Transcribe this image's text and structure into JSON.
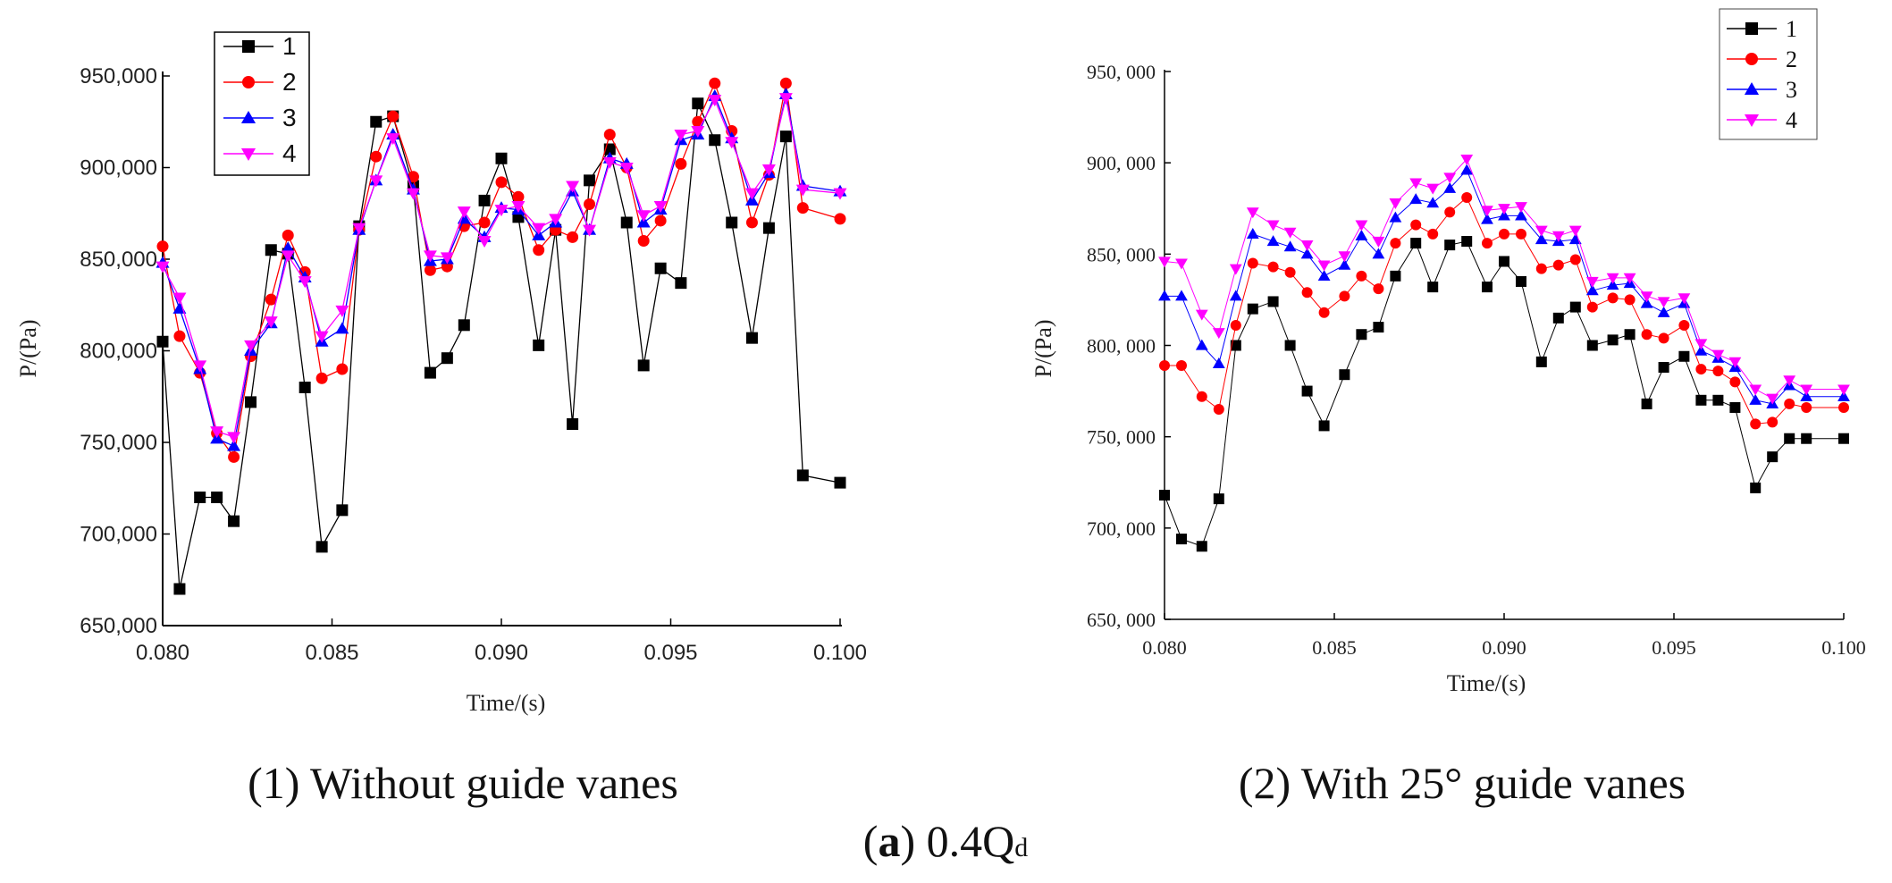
{
  "chart_data": [
    {
      "type": "line",
      "caption": "(1) Without guide vanes",
      "xlabel": "Time/(s)",
      "ylabel": "P/(Pa)",
      "xlim": [
        0.08,
        0.1
      ],
      "ylim": [
        650000,
        950000
      ],
      "xticks": [
        0.08,
        0.085,
        0.09,
        0.095,
        0.1
      ],
      "xtick_labels": [
        "0.080",
        "0.085",
        "0.090",
        "0.095",
        "0.100"
      ],
      "yticks": [
        650000,
        700000,
        750000,
        800000,
        850000,
        900000,
        950000
      ],
      "ytick_labels": [
        "650,000",
        "700,000",
        "750,000",
        "800,000",
        "850,000",
        "900,000",
        "950,000"
      ],
      "legend_position": "top-left",
      "x": [
        0.08,
        0.0805,
        0.0811,
        0.0816,
        0.0821,
        0.0826,
        0.0832,
        0.0837,
        0.0842,
        0.0847,
        0.0853,
        0.0858,
        0.0863,
        0.0868,
        0.0874,
        0.0879,
        0.0884,
        0.0889,
        0.0895,
        0.09,
        0.0905,
        0.0911,
        0.0916,
        0.0921,
        0.0926,
        0.0932,
        0.0937,
        0.0942,
        0.0947,
        0.0953,
        0.0958,
        0.0963,
        0.0968,
        0.0974,
        0.0979,
        0.0984,
        0.0989,
        0.1
      ],
      "series": [
        {
          "name": "1",
          "color": "#000000",
          "marker": "square",
          "values": [
            805000,
            670000,
            720000,
            720000,
            707000,
            772000,
            855000,
            853000,
            780000,
            693000,
            713000,
            868000,
            925000,
            928000,
            890000,
            788000,
            796000,
            814000,
            882000,
            905000,
            873000,
            803000,
            866000,
            760000,
            893000,
            910000,
            870000,
            792000,
            845000,
            837000,
            935000,
            915000,
            870000,
            807000,
            867000,
            917000,
            732000,
            728000
          ]
        },
        {
          "name": "2",
          "color": "#ff0000",
          "marker": "circle",
          "values": [
            857000,
            808000,
            788000,
            755000,
            742000,
            797000,
            828000,
            863000,
            843000,
            785000,
            790000,
            866000,
            906000,
            928000,
            895000,
            844000,
            846000,
            868000,
            870000,
            892000,
            884000,
            855000,
            866000,
            862000,
            880000,
            918000,
            900000,
            860000,
            871000,
            902000,
            925000,
            946000,
            920000,
            870000,
            896000,
            946000,
            878000,
            872000
          ]
        },
        {
          "name": "3",
          "color": "#0000ff",
          "marker": "triangle-up",
          "values": [
            848000,
            823000,
            790000,
            752000,
            748000,
            800000,
            815000,
            856000,
            840000,
            805000,
            812000,
            866000,
            893000,
            918000,
            888000,
            849000,
            850000,
            872000,
            862000,
            878000,
            877000,
            863000,
            870000,
            887000,
            866000,
            905000,
            902000,
            870000,
            877000,
            915000,
            918000,
            939000,
            916000,
            882000,
            897000,
            940000,
            890000,
            887000
          ]
        },
        {
          "name": "4",
          "color": "#ff00ff",
          "marker": "triangle-down",
          "values": [
            846000,
            829000,
            792000,
            756000,
            753000,
            803000,
            816000,
            852000,
            838000,
            808000,
            822000,
            867000,
            893000,
            916000,
            886000,
            852000,
            851000,
            876000,
            860000,
            877000,
            879000,
            867000,
            872000,
            890000,
            866000,
            903000,
            900000,
            874000,
            879000,
            918000,
            920000,
            937000,
            914000,
            886000,
            899000,
            938000,
            888000,
            886000
          ]
        }
      ]
    },
    {
      "type": "line",
      "caption": "(2) With 25° guide vanes",
      "xlabel": "Time/(s)",
      "ylabel": "P/(Pa)",
      "xlim": [
        0.08,
        0.1
      ],
      "ylim": [
        650000,
        950000
      ],
      "xticks": [
        0.08,
        0.085,
        0.09,
        0.095,
        0.1
      ],
      "xtick_labels": [
        "0.080",
        "0.085",
        "0.090",
        "0.095",
        "0.100"
      ],
      "yticks": [
        650000,
        700000,
        750000,
        800000,
        850000,
        900000,
        950000
      ],
      "ytick_labels": [
        "650, 000",
        "700, 000",
        "750, 000",
        "800, 000",
        "850, 000",
        "900, 000",
        "950, 000"
      ],
      "legend_position": "top-right",
      "x": [
        0.08,
        0.0805,
        0.0811,
        0.0816,
        0.0821,
        0.0826,
        0.0832,
        0.0837,
        0.0842,
        0.0847,
        0.0853,
        0.0858,
        0.0863,
        0.0868,
        0.0874,
        0.0879,
        0.0884,
        0.0889,
        0.0895,
        0.09,
        0.0905,
        0.0911,
        0.0916,
        0.0921,
        0.0926,
        0.0932,
        0.0937,
        0.0942,
        0.0947,
        0.0953,
        0.0958,
        0.0963,
        0.0968,
        0.0974,
        0.0979,
        0.0984,
        0.0989,
        0.1
      ],
      "series": [
        {
          "name": "1",
          "color": "#000000",
          "marker": "square",
          "values": [
            718000,
            694000,
            690000,
            716000,
            800000,
            820000,
            824000,
            800000,
            775000,
            756000,
            784000,
            806000,
            810000,
            838000,
            856000,
            832000,
            855000,
            857000,
            832000,
            846000,
            835000,
            791000,
            815000,
            821000,
            800000,
            803000,
            806000,
            768000,
            788000,
            794000,
            770000,
            770000,
            766000,
            722000,
            739000,
            749000,
            749000,
            749000
          ]
        },
        {
          "name": "2",
          "color": "#ff0000",
          "marker": "circle",
          "values": [
            789000,
            789000,
            772000,
            765000,
            811000,
            845000,
            843000,
            840000,
            829000,
            818000,
            827000,
            838000,
            831000,
            856000,
            866000,
            861000,
            873000,
            881000,
            856000,
            861000,
            861000,
            842000,
            844000,
            847000,
            821000,
            826000,
            825000,
            806000,
            804000,
            811000,
            787000,
            786000,
            780000,
            757000,
            758000,
            768000,
            766000,
            766000
          ]
        },
        {
          "name": "3",
          "color": "#0000ff",
          "marker": "triangle-up",
          "values": [
            827000,
            827000,
            800000,
            790000,
            827000,
            861000,
            857000,
            854000,
            850000,
            838000,
            844000,
            860000,
            850000,
            870000,
            880000,
            878000,
            886000,
            896000,
            869000,
            871000,
            871000,
            858000,
            857000,
            858000,
            830000,
            833000,
            834000,
            823000,
            818000,
            823000,
            797000,
            793000,
            788000,
            770000,
            768000,
            778000,
            772000,
            772000
          ]
        },
        {
          "name": "4",
          "color": "#ff00ff",
          "marker": "triangle-down",
          "values": [
            846000,
            845000,
            817000,
            807000,
            842000,
            873000,
            866000,
            862000,
            855000,
            844000,
            849000,
            866000,
            857000,
            878000,
            889000,
            886000,
            892000,
            902000,
            874000,
            875000,
            876000,
            863000,
            860000,
            863000,
            835000,
            837000,
            837000,
            827000,
            824000,
            826000,
            801000,
            795000,
            791000,
            776000,
            771000,
            781000,
            776000,
            776000
          ]
        }
      ]
    }
  ],
  "figure_caption": {
    "label": "a",
    "value": "0.4Q",
    "subscript": "d"
  }
}
